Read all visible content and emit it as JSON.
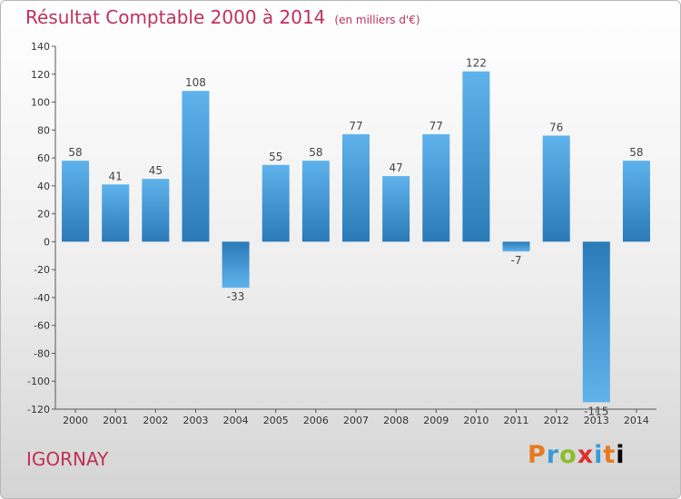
{
  "header": {
    "title": "Résultat Comptable 2000 à 2014",
    "subtitle": "(en milliers d'€)"
  },
  "footer": {
    "commune": "IGORNAY",
    "logo_text": "Proxiti"
  },
  "colors": {
    "title": "#c0305a",
    "bar_light": "#5fb3ec",
    "bar_dark": "#2a7ab8"
  },
  "chart_data": {
    "type": "bar",
    "title": "Résultat Comptable 2000 à 2014",
    "subtitle": "(en milliers d'€)",
    "xlabel": "",
    "ylabel": "",
    "categories": [
      "2000",
      "2001",
      "2002",
      "2003",
      "2004",
      "2005",
      "2006",
      "2007",
      "2008",
      "2009",
      "2010",
      "2011",
      "2012",
      "2013",
      "2014"
    ],
    "values": [
      58,
      41,
      45,
      108,
      -33,
      55,
      58,
      77,
      47,
      77,
      122,
      -7,
      76,
      -115,
      58
    ],
    "ylim": [
      -120,
      140
    ],
    "yticks": [
      -120,
      -100,
      -80,
      -60,
      -40,
      -20,
      0,
      20,
      40,
      60,
      80,
      100,
      120,
      140
    ],
    "grid": false,
    "legend": "none"
  }
}
